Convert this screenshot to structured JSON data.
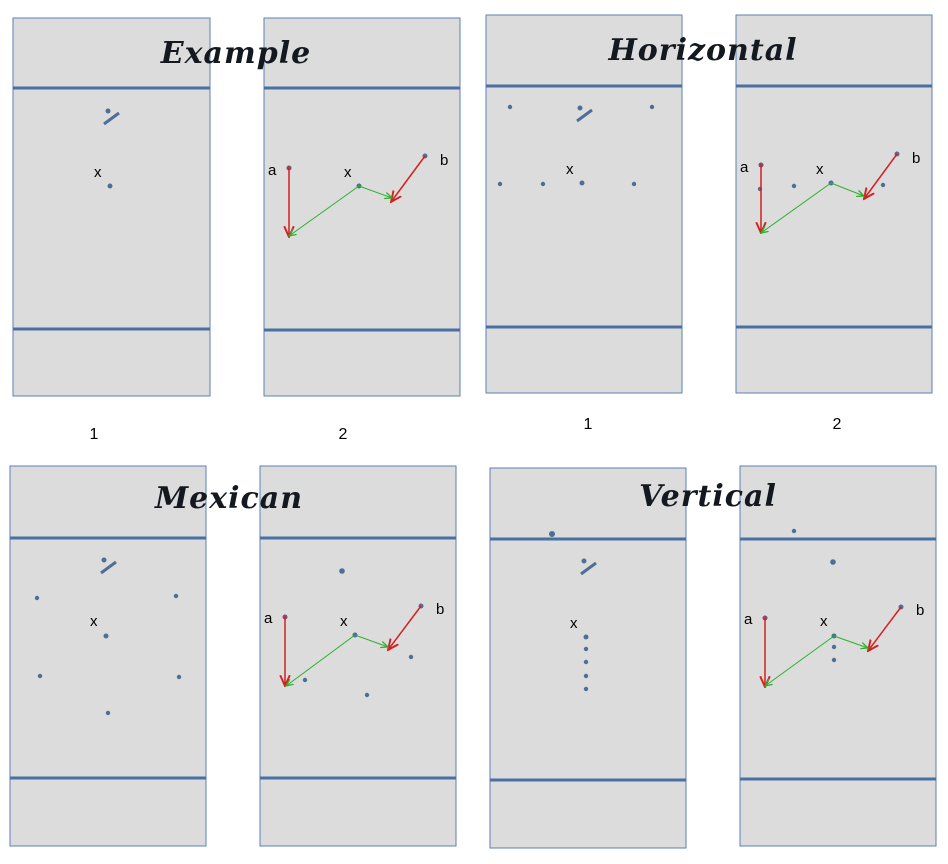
{
  "sections": [
    {
      "title": "Example",
      "panels": [
        {
          "step": "1",
          "x_label": "x"
        },
        {
          "step": "2",
          "x_label": "x",
          "a_label": "a",
          "b_label": "b"
        }
      ]
    },
    {
      "title": "Horizontal",
      "panels": [
        {
          "step": "1",
          "x_label": "x"
        },
        {
          "step": "2",
          "x_label": "x",
          "a_label": "a",
          "b_label": "b"
        }
      ]
    },
    {
      "title": "Mexican",
      "panels": [
        {
          "x_label": "x"
        },
        {
          "x_label": "x",
          "a_label": "a",
          "b_label": "b"
        }
      ]
    },
    {
      "title": "Vertical",
      "panels": [
        {
          "x_label": "x"
        },
        {
          "x_label": "x",
          "a_label": "a",
          "b_label": "b"
        }
      ]
    }
  ],
  "colors": {
    "panel_fill": "#dcdcdc",
    "panel_border": "#5b7fb6",
    "divider": "#4a6fa3",
    "dot": "#4d6f96",
    "red_arrow": "#d42020",
    "green_arrow": "#2cb02c"
  },
  "icons": [
    "ball-with-stick-icon"
  ]
}
